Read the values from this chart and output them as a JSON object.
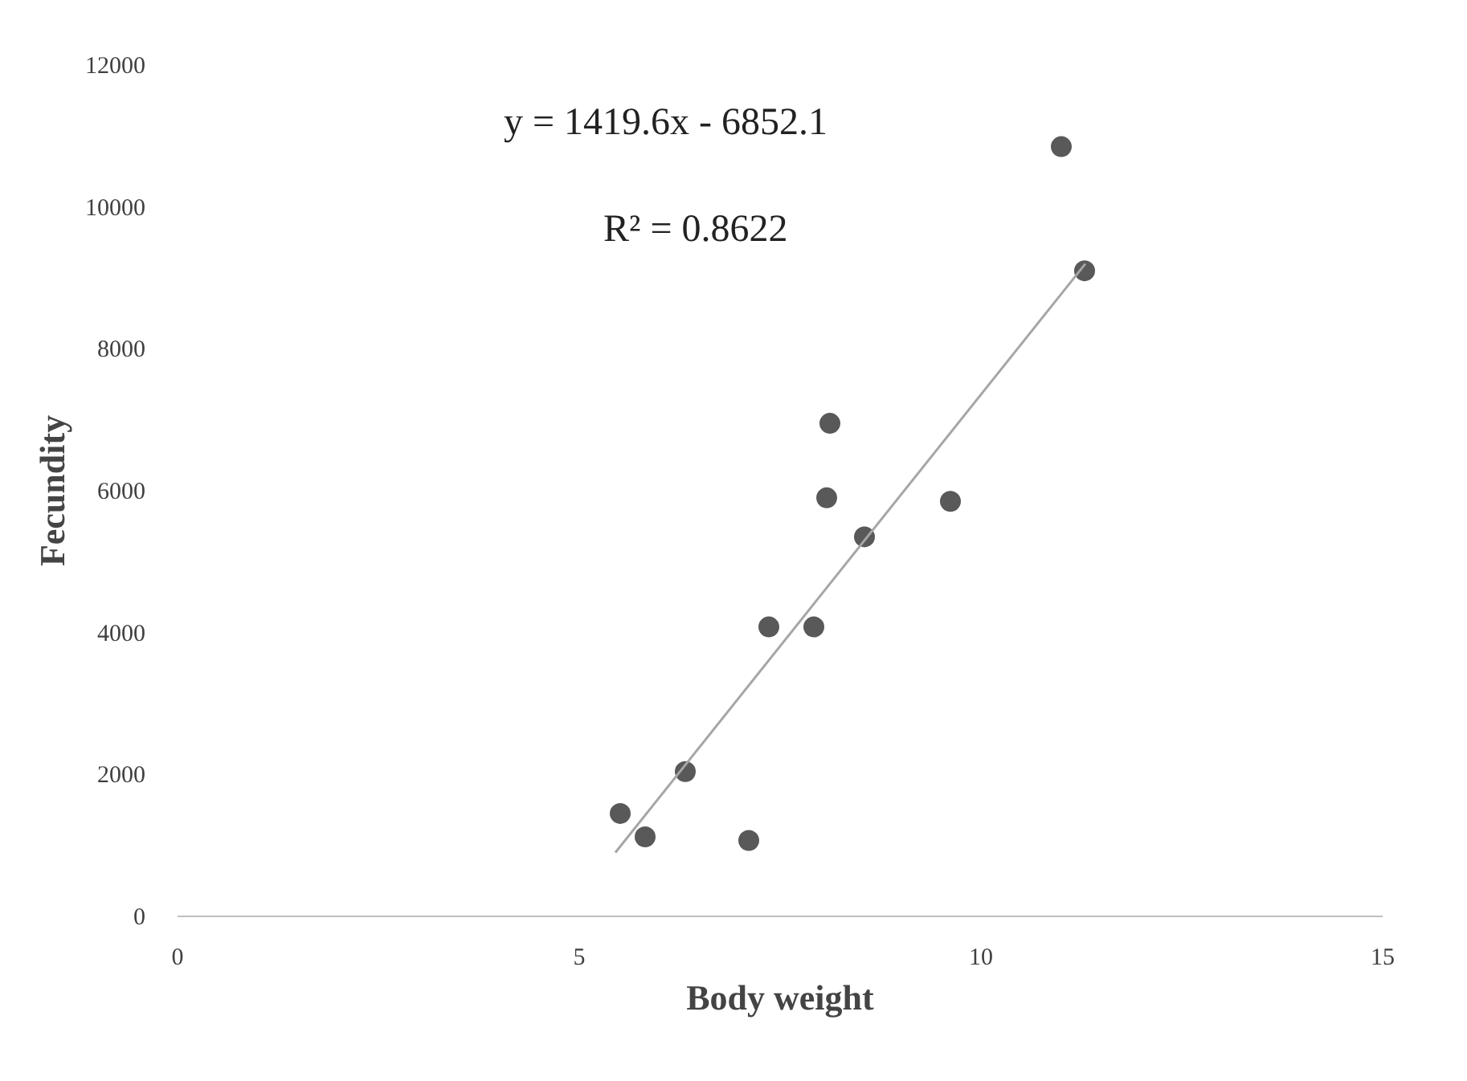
{
  "chart_data": {
    "type": "scatter",
    "xlabel": "Body weight",
    "ylabel": "Fecundity",
    "xlim": [
      0,
      15
    ],
    "xticks": [
      0,
      5,
      10,
      15
    ],
    "ylim": [
      0,
      12000
    ],
    "yticks": [
      0,
      2000,
      4000,
      6000,
      8000,
      10000,
      12000
    ],
    "grid": false,
    "series": [
      {
        "color": "#595959",
        "marker": "circle",
        "x": [
          5.51,
          5.82,
          6.32,
          7.11,
          7.36,
          7.92,
          8.08,
          8.12,
          8.55,
          9.62,
          11.0,
          11.29
        ],
        "values": [
          1450,
          1120,
          2040,
          1070,
          4080,
          4080,
          5900,
          6950,
          5350,
          5850,
          10850,
          9100
        ]
      },
      {
        "type": "line",
        "color": "#a6a6a6",
        "x": [
          5.45,
          11.3
        ],
        "values": [
          900,
          9200
        ]
      }
    ],
    "annotations": [
      "y = 1419.6x - 6852.1",
      "R² = 0.8622"
    ]
  }
}
